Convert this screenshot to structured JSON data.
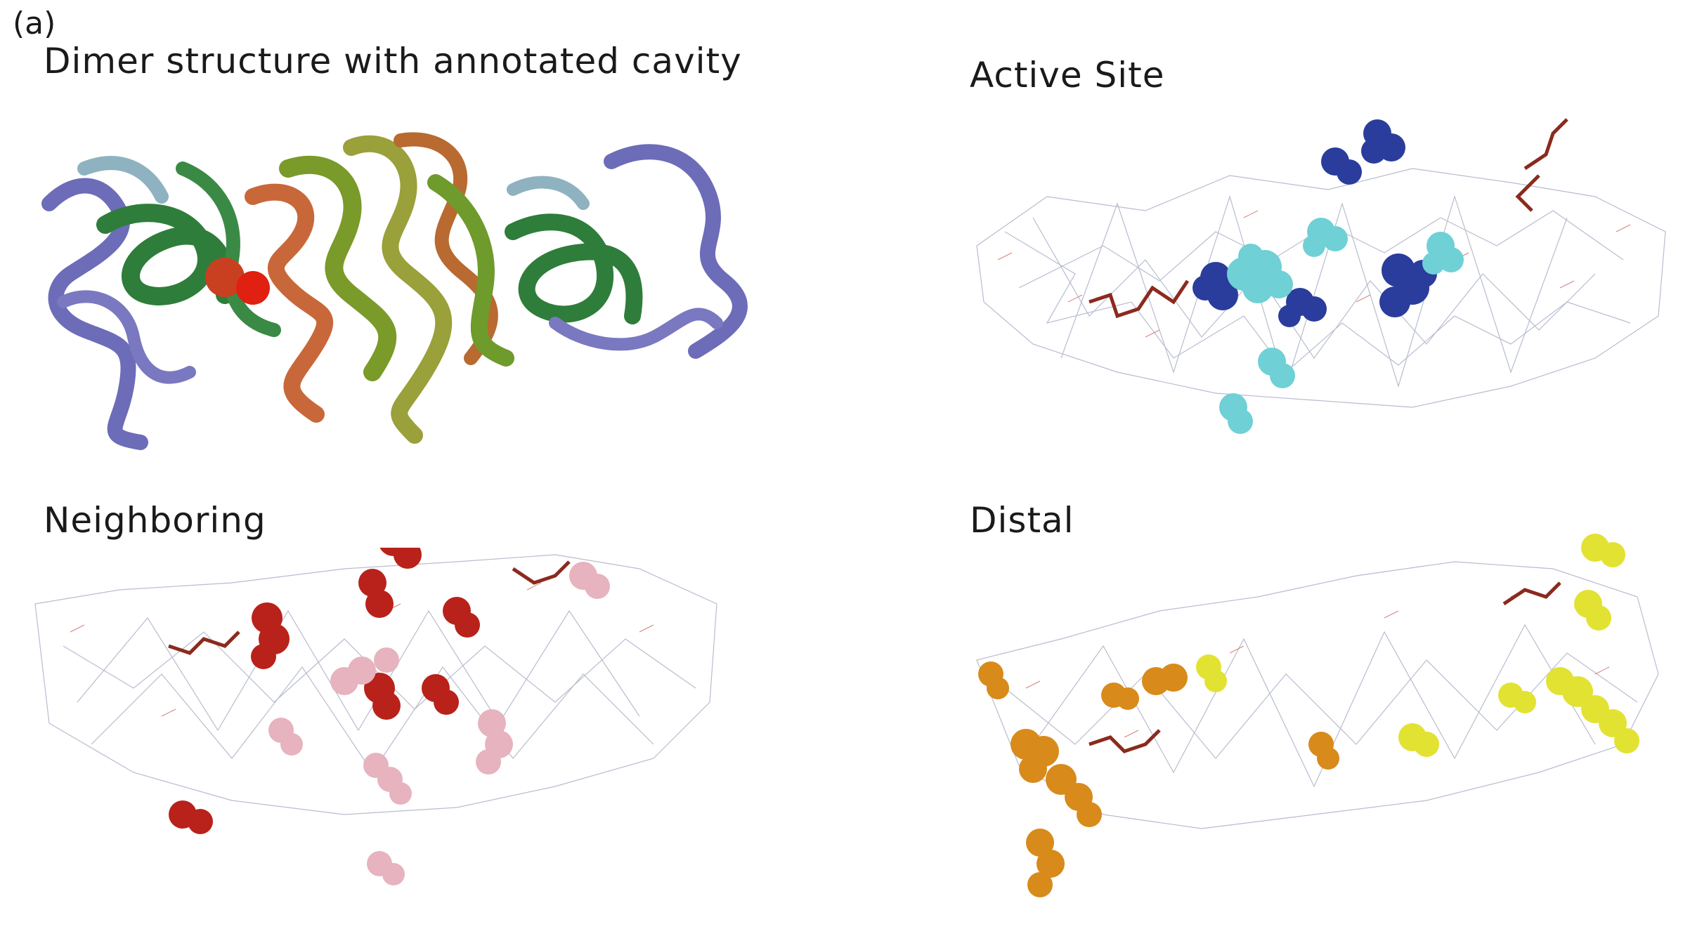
{
  "figure": {
    "panel_letter": "(a)",
    "panels": {
      "dimer": {
        "title": "Dimer structure with annotated cavity"
      },
      "active": {
        "title": "Active Site"
      },
      "neighboring": {
        "title": "Neighboring"
      },
      "distal": {
        "title": "Distal"
      }
    },
    "colors": {
      "backbone_wire": "#b8bccf",
      "wire_red": "#d98080",
      "ligand": "#8b2a1e",
      "active_dark": "#2a3c9c",
      "active_light": "#6fd0d6",
      "neigh_dark": "#b8221a",
      "neigh_light": "#e6b3bf",
      "distal_orange": "#d88a1a",
      "distal_yellow": "#e2e233",
      "ribbon_purple": "#6c6cb8",
      "ribbon_green": "#2f7d3a",
      "ribbon_olive": "#8a9a2a",
      "ribbon_orange": "#c8683a",
      "cavity_red": "#e02010"
    }
  }
}
